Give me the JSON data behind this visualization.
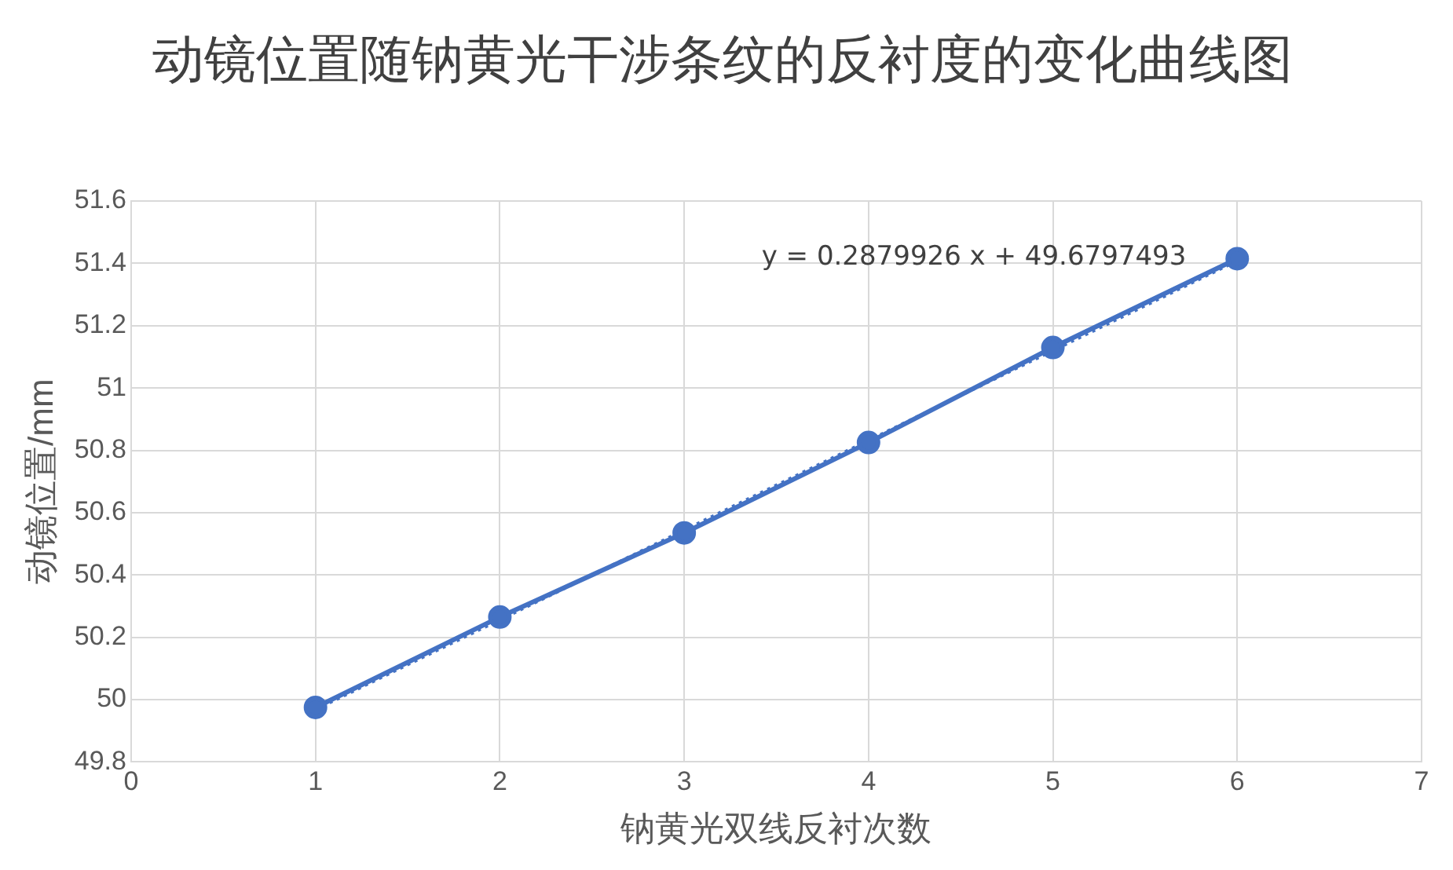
{
  "chart_data": {
    "type": "line",
    "title": "动镜位置随钠黄光干涉条纹的反衬度的变化曲线图",
    "xlabel": "钠黄光双线反衬次数",
    "ylabel": "动镜位置/mm",
    "x": [
      1,
      2,
      3,
      4,
      5,
      6
    ],
    "series": [
      {
        "color": "#4472c4",
        "values": [
          49.975,
          50.265,
          50.535,
          50.825,
          51.13,
          51.415
        ],
        "marker": "circle",
        "line_style": "solid"
      },
      {
        "type": "line",
        "color": "#4472c4",
        "x": [
          1,
          6
        ],
        "values": [
          49.968,
          51.408
        ],
        "marker": "none",
        "line_style": "dotted"
      }
    ],
    "annotations": [
      "y = 0.2879926 x + 49.6797493"
    ],
    "xlim": [
      0,
      7
    ],
    "xticks": [
      0,
      1,
      2,
      3,
      4,
      5,
      6,
      7
    ],
    "ylim": [
      49.8,
      51.6
    ],
    "yticks": [
      49.8,
      50,
      50.2,
      50.4,
      50.6,
      50.8,
      51,
      51.2,
      51.4,
      51.6
    ],
    "grid": true,
    "legend": false
  }
}
